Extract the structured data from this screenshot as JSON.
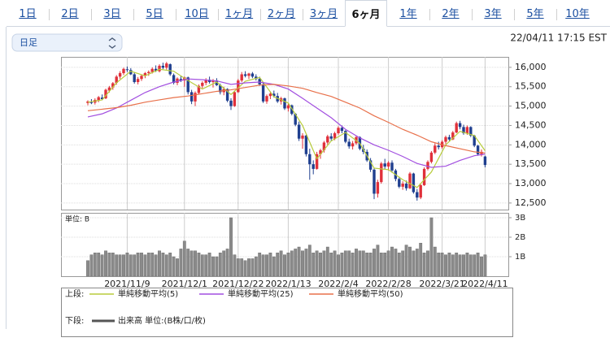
{
  "tabs": {
    "items": [
      "1日",
      "2日",
      "3日",
      "5日",
      "10日",
      "1ヶ月",
      "2ヶ月",
      "3ヶ月",
      "6ヶ月",
      "1年",
      "2年",
      "3年",
      "5年",
      "10年"
    ],
    "selected": 8
  },
  "interval_select": "日足",
  "timestamp": "22/04/11 17:15 EST",
  "chart_data": [
    {
      "type": "candlestick",
      "categories": [
        null,
        null,
        null,
        null,
        null,
        null,
        null,
        null,
        null,
        null,
        null,
        "2021/11/9",
        null,
        null,
        null,
        null,
        null,
        null,
        null,
        null,
        null,
        null,
        null,
        null,
        null,
        null,
        null,
        "2021/12/1",
        null,
        null,
        null,
        null,
        null,
        null,
        null,
        null,
        null,
        null,
        null,
        null,
        null,
        null,
        "2021/12/22",
        null,
        null,
        null,
        null,
        null,
        null,
        null,
        null,
        null,
        null,
        null,
        null,
        null,
        "2022/1/13",
        null,
        null,
        null,
        null,
        null,
        null,
        null,
        null,
        null,
        null,
        null,
        null,
        null,
        "2022/2/4",
        null,
        null,
        null,
        null,
        null,
        null,
        null,
        null,
        null,
        null,
        null,
        null,
        null,
        "2022/2/28",
        null,
        null,
        null,
        null,
        null,
        null,
        null,
        null,
        null,
        null,
        null,
        null,
        null,
        null,
        "2022/3/21",
        null,
        null,
        null,
        null,
        null,
        null,
        null,
        null,
        null,
        null,
        null,
        "2022/4/11"
      ],
      "ohlc": [
        [
          15080,
          15150,
          15020,
          15120
        ],
        [
          15100,
          15180,
          15050,
          15090
        ],
        [
          15090,
          15200,
          15040,
          15160
        ],
        [
          15150,
          15260,
          15100,
          15230
        ],
        [
          15220,
          15300,
          15150,
          15180
        ],
        [
          15200,
          15450,
          15180,
          15420
        ],
        [
          15400,
          15520,
          15350,
          15480
        ],
        [
          15480,
          15620,
          15420,
          15590
        ],
        [
          15600,
          15800,
          15550,
          15760
        ],
        [
          15760,
          15900,
          15700,
          15850
        ],
        [
          15850,
          15990,
          15800,
          15960
        ],
        [
          15950,
          16020,
          15880,
          15940
        ],
        [
          15930,
          15980,
          15800,
          15820
        ],
        [
          15820,
          15880,
          15580,
          15620
        ],
        [
          15620,
          15750,
          15560,
          15700
        ],
        [
          15700,
          15820,
          15650,
          15780
        ],
        [
          15780,
          15880,
          15720,
          15850
        ],
        [
          15850,
          15920,
          15780,
          15880
        ],
        [
          15880,
          16000,
          15840,
          15960
        ],
        [
          15960,
          16050,
          15880,
          15910
        ],
        [
          15900,
          16080,
          15870,
          16040
        ],
        [
          16040,
          16120,
          15950,
          15990
        ],
        [
          15990,
          16140,
          15940,
          16100
        ],
        [
          16080,
          16100,
          15780,
          15820
        ],
        [
          15800,
          15840,
          15560,
          15600
        ],
        [
          15600,
          15740,
          15540,
          15710
        ],
        [
          15700,
          15780,
          15620,
          15660
        ],
        [
          15660,
          15760,
          15500,
          15740
        ],
        [
          15740,
          15760,
          15300,
          15360
        ],
        [
          15360,
          15420,
          15050,
          15120
        ],
        [
          15120,
          15380,
          15000,
          15340
        ],
        [
          15340,
          15560,
          15300,
          15520
        ],
        [
          15520,
          15640,
          15460,
          15600
        ],
        [
          15600,
          15720,
          15540,
          15680
        ],
        [
          15680,
          15760,
          15580,
          15620
        ],
        [
          15620,
          15700,
          15480,
          15660
        ],
        [
          15660,
          15720,
          15520,
          15540
        ],
        [
          15540,
          15580,
          15300,
          15360
        ],
        [
          15360,
          15500,
          15280,
          15440
        ],
        [
          15440,
          15460,
          15100,
          15140
        ],
        [
          15140,
          15200,
          14900,
          15000
        ],
        [
          15000,
          15400,
          14980,
          15360
        ],
        [
          15360,
          15700,
          15340,
          15660
        ],
        [
          15660,
          15880,
          15620,
          15820
        ],
        [
          15820,
          15900,
          15740,
          15780
        ],
        [
          15780,
          15860,
          15700,
          15840
        ],
        [
          15840,
          15880,
          15720,
          15760
        ],
        [
          15760,
          15820,
          15660,
          15700
        ],
        [
          15700,
          15760,
          15520,
          15560
        ],
        [
          15560,
          15600,
          15080,
          15120
        ],
        [
          15120,
          15300,
          15060,
          15260
        ],
        [
          15260,
          15380,
          15180,
          15320
        ],
        [
          15320,
          15400,
          15220,
          15260
        ],
        [
          15260,
          15340,
          15080,
          15120
        ],
        [
          15120,
          15240,
          15040,
          15200
        ],
        [
          15200,
          15220,
          14900,
          14940
        ],
        [
          14940,
          15060,
          14860,
          15020
        ],
        [
          15020,
          15040,
          14760,
          14800
        ],
        [
          14800,
          14820,
          14480,
          14520
        ],
        [
          14520,
          14600,
          14100,
          14160
        ],
        [
          14160,
          14300,
          13900,
          14240
        ],
        [
          14240,
          14260,
          13700,
          13760
        ],
        [
          13760,
          13900,
          13100,
          13500
        ],
        [
          13500,
          13600,
          13240,
          13380
        ],
        [
          13380,
          13820,
          13360,
          13760
        ],
        [
          13760,
          13900,
          13640,
          13860
        ],
        [
          13860,
          14100,
          13800,
          14060
        ],
        [
          14060,
          14260,
          14000,
          14220
        ],
        [
          14220,
          14300,
          14100,
          14160
        ],
        [
          14160,
          14340,
          14120,
          14300
        ],
        [
          14300,
          14480,
          14260,
          14440
        ],
        [
          14440,
          14500,
          14300,
          14360
        ],
        [
          14360,
          14380,
          14040,
          14080
        ],
        [
          14080,
          14160,
          13900,
          13960
        ],
        [
          13960,
          14100,
          13880,
          14040
        ],
        [
          14040,
          14240,
          14000,
          14200
        ],
        [
          14200,
          14220,
          13860,
          13900
        ],
        [
          13900,
          14000,
          13760,
          13820
        ],
        [
          13820,
          13880,
          13560,
          13600
        ],
        [
          13600,
          13660,
          13300,
          13360
        ],
        [
          13360,
          13400,
          12600,
          12740
        ],
        [
          12740,
          13100,
          12640,
          13040
        ],
        [
          13040,
          13560,
          13000,
          13520
        ],
        [
          13520,
          13640,
          13380,
          13440
        ],
        [
          13440,
          13580,
          13340,
          13540
        ],
        [
          13540,
          13600,
          13280,
          13340
        ],
        [
          13340,
          13380,
          13060,
          13120
        ],
        [
          13120,
          13180,
          12880,
          12920
        ],
        [
          12920,
          13060,
          12840,
          13000
        ],
        [
          13000,
          13080,
          12820,
          12880
        ],
        [
          12880,
          13300,
          12860,
          13260
        ],
        [
          13260,
          13280,
          12740,
          12780
        ],
        [
          12780,
          12860,
          12560,
          12640
        ],
        [
          12640,
          13000,
          12600,
          12960
        ],
        [
          12960,
          13420,
          12940,
          13380
        ],
        [
          13380,
          13600,
          13340,
          13560
        ],
        [
          13560,
          13840,
          13520,
          13800
        ],
        [
          13800,
          14040,
          13760,
          13980
        ],
        [
          13980,
          14080,
          13880,
          13940
        ],
        [
          13940,
          14120,
          13900,
          14080
        ],
        [
          14080,
          14240,
          14020,
          14200
        ],
        [
          14200,
          14260,
          14100,
          14140
        ],
        [
          14140,
          14360,
          14120,
          14320
        ],
        [
          14320,
          14600,
          14300,
          14560
        ],
        [
          14560,
          14620,
          14400,
          14460
        ],
        [
          14460,
          14520,
          14260,
          14300
        ],
        [
          14300,
          14500,
          14260,
          14460
        ],
        [
          14460,
          14480,
          14200,
          14240
        ],
        [
          14240,
          14260,
          13940,
          13980
        ],
        [
          13980,
          14000,
          13720,
          13760
        ],
        [
          13760,
          13880,
          13700,
          13820
        ],
        [
          13700,
          13720,
          13420,
          13480
        ]
      ],
      "up_color": "#e0303a",
      "down_color": "#1f3f8f",
      "ylim": [
        12330,
        16270
      ],
      "yticks": [
        {
          "value": 12500,
          "label": "12,500"
        },
        {
          "value": 13000,
          "label": "13,000"
        },
        {
          "value": 13500,
          "label": "13,500"
        },
        {
          "value": 14000,
          "label": "14,000"
        },
        {
          "value": 14500,
          "label": "14,500"
        },
        {
          "value": 15000,
          "label": "15,000"
        },
        {
          "value": 15500,
          "label": "15,500"
        },
        {
          "value": 16000,
          "label": "16,000"
        }
      ],
      "grid": true,
      "series": [
        {
          "name": "単純移動平均(5)",
          "color": "#b8cc3c",
          "x": [
            0,
            4,
            8,
            12,
            16,
            20,
            24,
            28,
            32,
            36,
            40,
            44,
            48,
            52,
            56,
            60,
            64,
            68,
            72,
            76,
            80,
            84,
            88,
            92,
            96,
            100,
            104,
            108,
            111
          ],
          "values": [
            15100,
            15160,
            15600,
            15900,
            15780,
            15950,
            15900,
            15660,
            15440,
            15620,
            15300,
            15640,
            15740,
            15240,
            15080,
            14500,
            13640,
            14100,
            14320,
            14040,
            13400,
            13360,
            13100,
            12900,
            13300,
            14000,
            14350,
            14240,
            13850
          ]
        },
        {
          "name": "単純移動平均(25)",
          "color": "#a24fe0",
          "x": [
            0,
            4,
            8,
            12,
            16,
            20,
            24,
            28,
            32,
            36,
            40,
            44,
            48,
            52,
            56,
            60,
            64,
            68,
            72,
            76,
            80,
            84,
            88,
            92,
            96,
            100,
            104,
            108,
            111
          ],
          "values": [
            14720,
            14800,
            14950,
            15150,
            15350,
            15500,
            15620,
            15700,
            15680,
            15650,
            15560,
            15600,
            15620,
            15560,
            15440,
            15200,
            14950,
            14700,
            14400,
            14180,
            14000,
            13860,
            13700,
            13520,
            13420,
            13450,
            13600,
            13720,
            13760
          ]
        },
        {
          "name": "単純移動平均(50)",
          "color": "#e8704a",
          "x": [
            0,
            4,
            8,
            12,
            16,
            20,
            24,
            28,
            32,
            36,
            40,
            44,
            48,
            52,
            56,
            60,
            64,
            68,
            72,
            76,
            80,
            84,
            88,
            92,
            96,
            100,
            104,
            108,
            111
          ],
          "values": [
            14880,
            14920,
            14960,
            15020,
            15100,
            15160,
            15220,
            15260,
            15320,
            15380,
            15420,
            15480,
            15540,
            15560,
            15520,
            15460,
            15350,
            15250,
            15100,
            14950,
            14750,
            14580,
            14400,
            14250,
            14080,
            13980,
            13900,
            13820,
            13790
          ]
        }
      ]
    },
    {
      "type": "bar",
      "unit_label": "単位: B",
      "color": "#8a8a8a",
      "values": [
        0.8,
        1.1,
        1.2,
        1.2,
        1.1,
        1.3,
        1.2,
        1.2,
        1.1,
        1.1,
        1.1,
        1.2,
        1.1,
        1.1,
        1.2,
        1.2,
        1.1,
        1.2,
        1.2,
        1.1,
        1.3,
        1.2,
        1.1,
        1.2,
        1.0,
        0.9,
        1.4,
        1.8,
        1.4,
        1.3,
        1.3,
        1.2,
        1.1,
        1.1,
        1.2,
        1.0,
        1.0,
        1.2,
        1.3,
        1.4,
        3.0,
        1.1,
        0.9,
        0.9,
        0.8,
        0.9,
        0.9,
        1.0,
        1.2,
        1.1,
        1.1,
        1.2,
        1.0,
        1.2,
        1.3,
        1.1,
        1.2,
        1.3,
        1.4,
        1.5,
        1.3,
        1.4,
        1.6,
        1.2,
        1.3,
        1.2,
        1.3,
        1.5,
        1.2,
        1.3,
        1.1,
        1.2,
        1.3,
        1.3,
        1.2,
        1.4,
        1.3,
        1.3,
        1.2,
        1.2,
        1.4,
        1.6,
        1.2,
        1.2,
        1.3,
        1.5,
        1.4,
        1.2,
        1.3,
        1.6,
        1.5,
        1.3,
        1.4,
        1.7,
        1.2,
        1.3,
        3.0,
        1.5,
        1.2,
        1.2,
        1.1,
        1.2,
        1.1,
        1.2,
        1.1,
        1.1,
        1.2,
        1.1,
        1.1,
        1.2,
        1.0,
        1.1
      ],
      "ylim": [
        0,
        3.25
      ],
      "yticks": [
        {
          "value": 1,
          "label": "1B"
        },
        {
          "value": 2,
          "label": "2B"
        },
        {
          "value": 3,
          "label": "3B"
        }
      ],
      "grid": true
    }
  ],
  "legend": {
    "upper_label": "上段:",
    "lower_label": "下段:",
    "lower_item": "出来高 単位:(B株/口/枚)"
  }
}
